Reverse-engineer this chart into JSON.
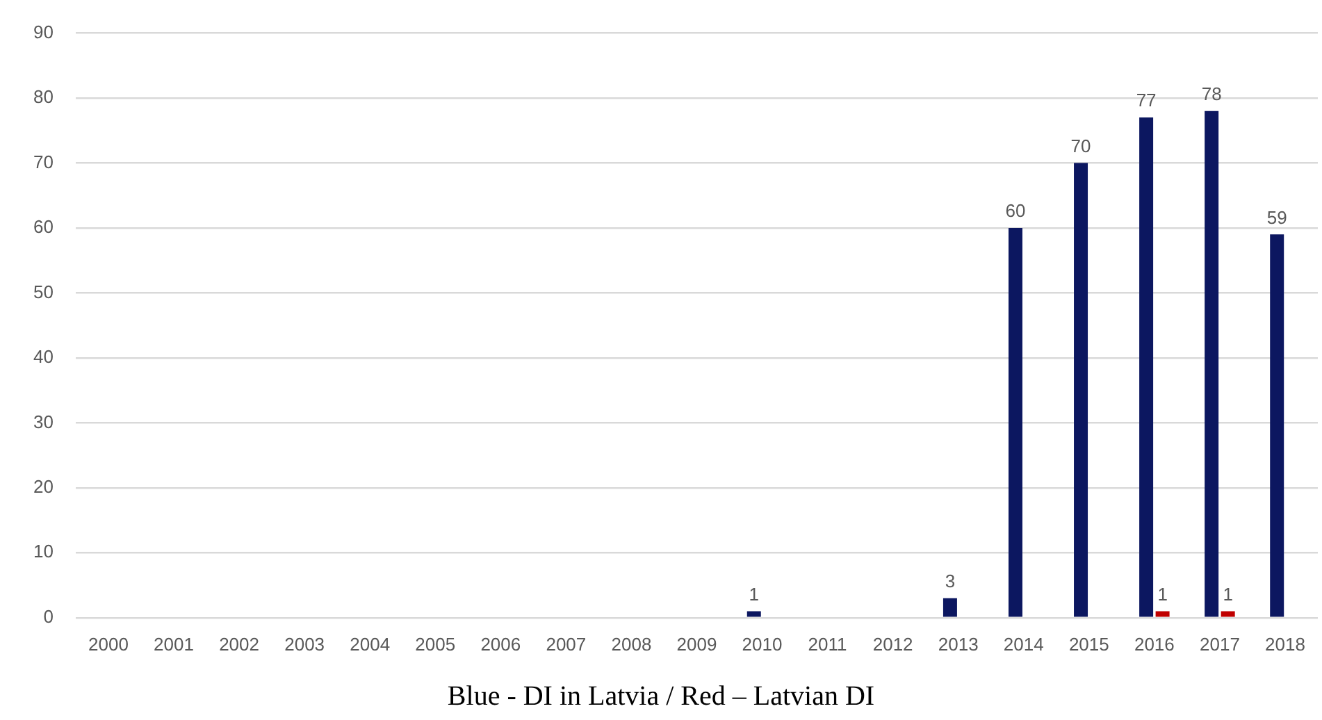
{
  "chart_data": {
    "type": "bar",
    "categories": [
      "2000",
      "2001",
      "2002",
      "2003",
      "2004",
      "2005",
      "2006",
      "2007",
      "2008",
      "2009",
      "2010",
      "2011",
      "2012",
      "2013",
      "2014",
      "2015",
      "2016",
      "2017",
      "2018"
    ],
    "series": [
      {
        "color": "#0c1760",
        "values": [
          0,
          0,
          0,
          0,
          0,
          0,
          0,
          0,
          0,
          0,
          1,
          0,
          0,
          3,
          60,
          70,
          77,
          78,
          59
        ],
        "value_labels": [
          null,
          null,
          null,
          null,
          null,
          null,
          null,
          null,
          null,
          null,
          "1",
          null,
          null,
          "3",
          "60",
          "70",
          "77",
          "78",
          "59"
        ]
      },
      {
        "color": "#c00000",
        "values": [
          0,
          0,
          0,
          0,
          0,
          0,
          0,
          0,
          0,
          0,
          0,
          0,
          0,
          0,
          0,
          0,
          1,
          1,
          0
        ],
        "value_labels": [
          null,
          null,
          null,
          null,
          null,
          null,
          null,
          null,
          null,
          null,
          null,
          null,
          null,
          null,
          null,
          null,
          "1",
          "1",
          null
        ]
      }
    ],
    "ylim": [
      0,
      90
    ],
    "yticks": [
      0,
      10,
      20,
      30,
      40,
      50,
      60,
      70,
      80,
      90
    ],
    "grid": "y",
    "annotations": [
      "Blue - DI in Latvia / Red – Latvian DI"
    ]
  }
}
